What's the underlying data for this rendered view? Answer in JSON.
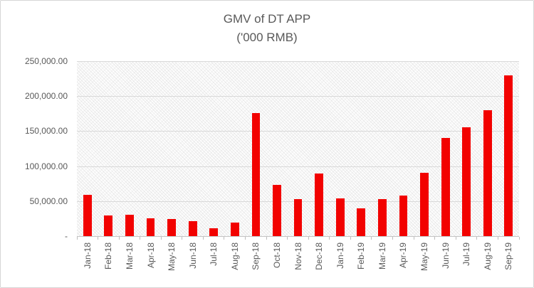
{
  "chart_data": {
    "type": "bar",
    "title": "GMV of DT APP",
    "subtitle": "('000 RMB)",
    "categories": [
      "Jan-18",
      "Feb-18",
      "Mar-18",
      "Apr-18",
      "May-18",
      "Jun-18",
      "Jul-18",
      "Aug-18",
      "Sep-18",
      "Oct-18",
      "Nov-18",
      "Dec-18",
      "Jan-19",
      "Feb-19",
      "Mar-19",
      "Apr-19",
      "May-19",
      "Jun-19",
      "Jul-19",
      "Aug-19",
      "Sep-19"
    ],
    "values": [
      59000,
      29000,
      31000,
      25000,
      24000,
      21000,
      11000,
      19000,
      176000,
      73000,
      53000,
      89000,
      54000,
      40000,
      53000,
      58000,
      90000,
      140000,
      156000,
      180000,
      230000
    ],
    "ylim": [
      0,
      250000
    ],
    "ytick_step": 50000,
    "yticks": [
      {
        "value": 250000,
        "label": "250,000.00"
      },
      {
        "value": 200000,
        "label": "200,000.00"
      },
      {
        "value": 150000,
        "label": "150,000.00"
      },
      {
        "value": 100000,
        "label": "100,000.00"
      },
      {
        "value": 50000,
        "label": "50,000.00"
      },
      {
        "value": 0,
        "label": "-"
      }
    ],
    "grid": true,
    "legend": "none",
    "plot_background": "diagonal-hatch",
    "colors": {
      "bar": "#f20200",
      "gridline": "#d9d9d9",
      "axis": "#bdbdbd",
      "text": "#595959"
    }
  }
}
